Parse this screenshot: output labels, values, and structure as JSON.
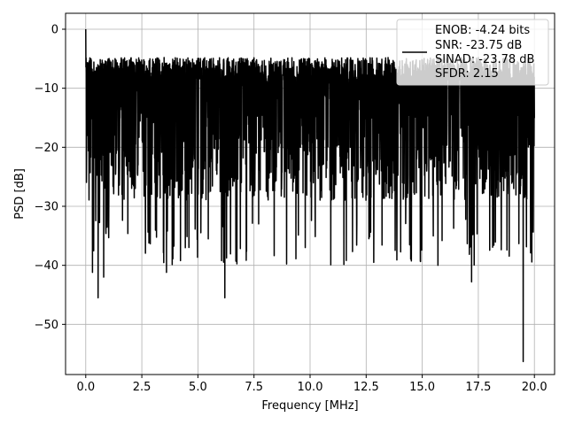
{
  "chart_data": {
    "type": "line",
    "xlabel": "Frequency [MHz]",
    "ylabel": "PSD [dB]",
    "xlim": [
      -0.9,
      20.9
    ],
    "ylim": [
      -58.5,
      2.7
    ],
    "xticks": [
      0.0,
      2.5,
      5.0,
      7.5,
      10.0,
      12.5,
      15.0,
      17.5,
      20.0
    ],
    "xtick_labels": [
      "0.0",
      "2.5",
      "5.0",
      "7.5",
      "10.0",
      "12.5",
      "15.0",
      "17.5",
      "20.0"
    ],
    "yticks": [
      0,
      -10,
      -20,
      -30,
      -40,
      -50
    ],
    "ytick_labels": [
      "0",
      "−10",
      "−20",
      "−30",
      "−40",
      "−50"
    ],
    "grid": true,
    "legend_position": "top-right",
    "line_color": "#000000",
    "series": [
      {
        "name": "ENOB: -4.24 bits\nSNR: -23.75 dB\nSINAD: -23.78 dB\nSFDR: 2.15",
        "legend_lines": [
          "ENOB: -4.24 bits",
          "SNR: -23.75 dB",
          "SINAD: -23.78 dB",
          "SFDR: 2.15"
        ],
        "x_range": [
          0.0,
          20.0
        ],
        "typical_band": [
          -26,
          -8
        ],
        "notable_points": [
          {
            "x": 0.0,
            "y": 0.0
          },
          {
            "x": 0.05,
            "y": -14.0
          },
          {
            "x": 0.3,
            "y": -41.2
          },
          {
            "x": 0.55,
            "y": -45.5
          },
          {
            "x": 0.8,
            "y": -42.0
          },
          {
            "x": 3.6,
            "y": -41.2
          },
          {
            "x": 6.2,
            "y": -45.5
          },
          {
            "x": 15.7,
            "y": -40.0
          },
          {
            "x": 17.2,
            "y": -42.8
          },
          {
            "x": 19.5,
            "y": -56.3
          }
        ]
      }
    ]
  }
}
